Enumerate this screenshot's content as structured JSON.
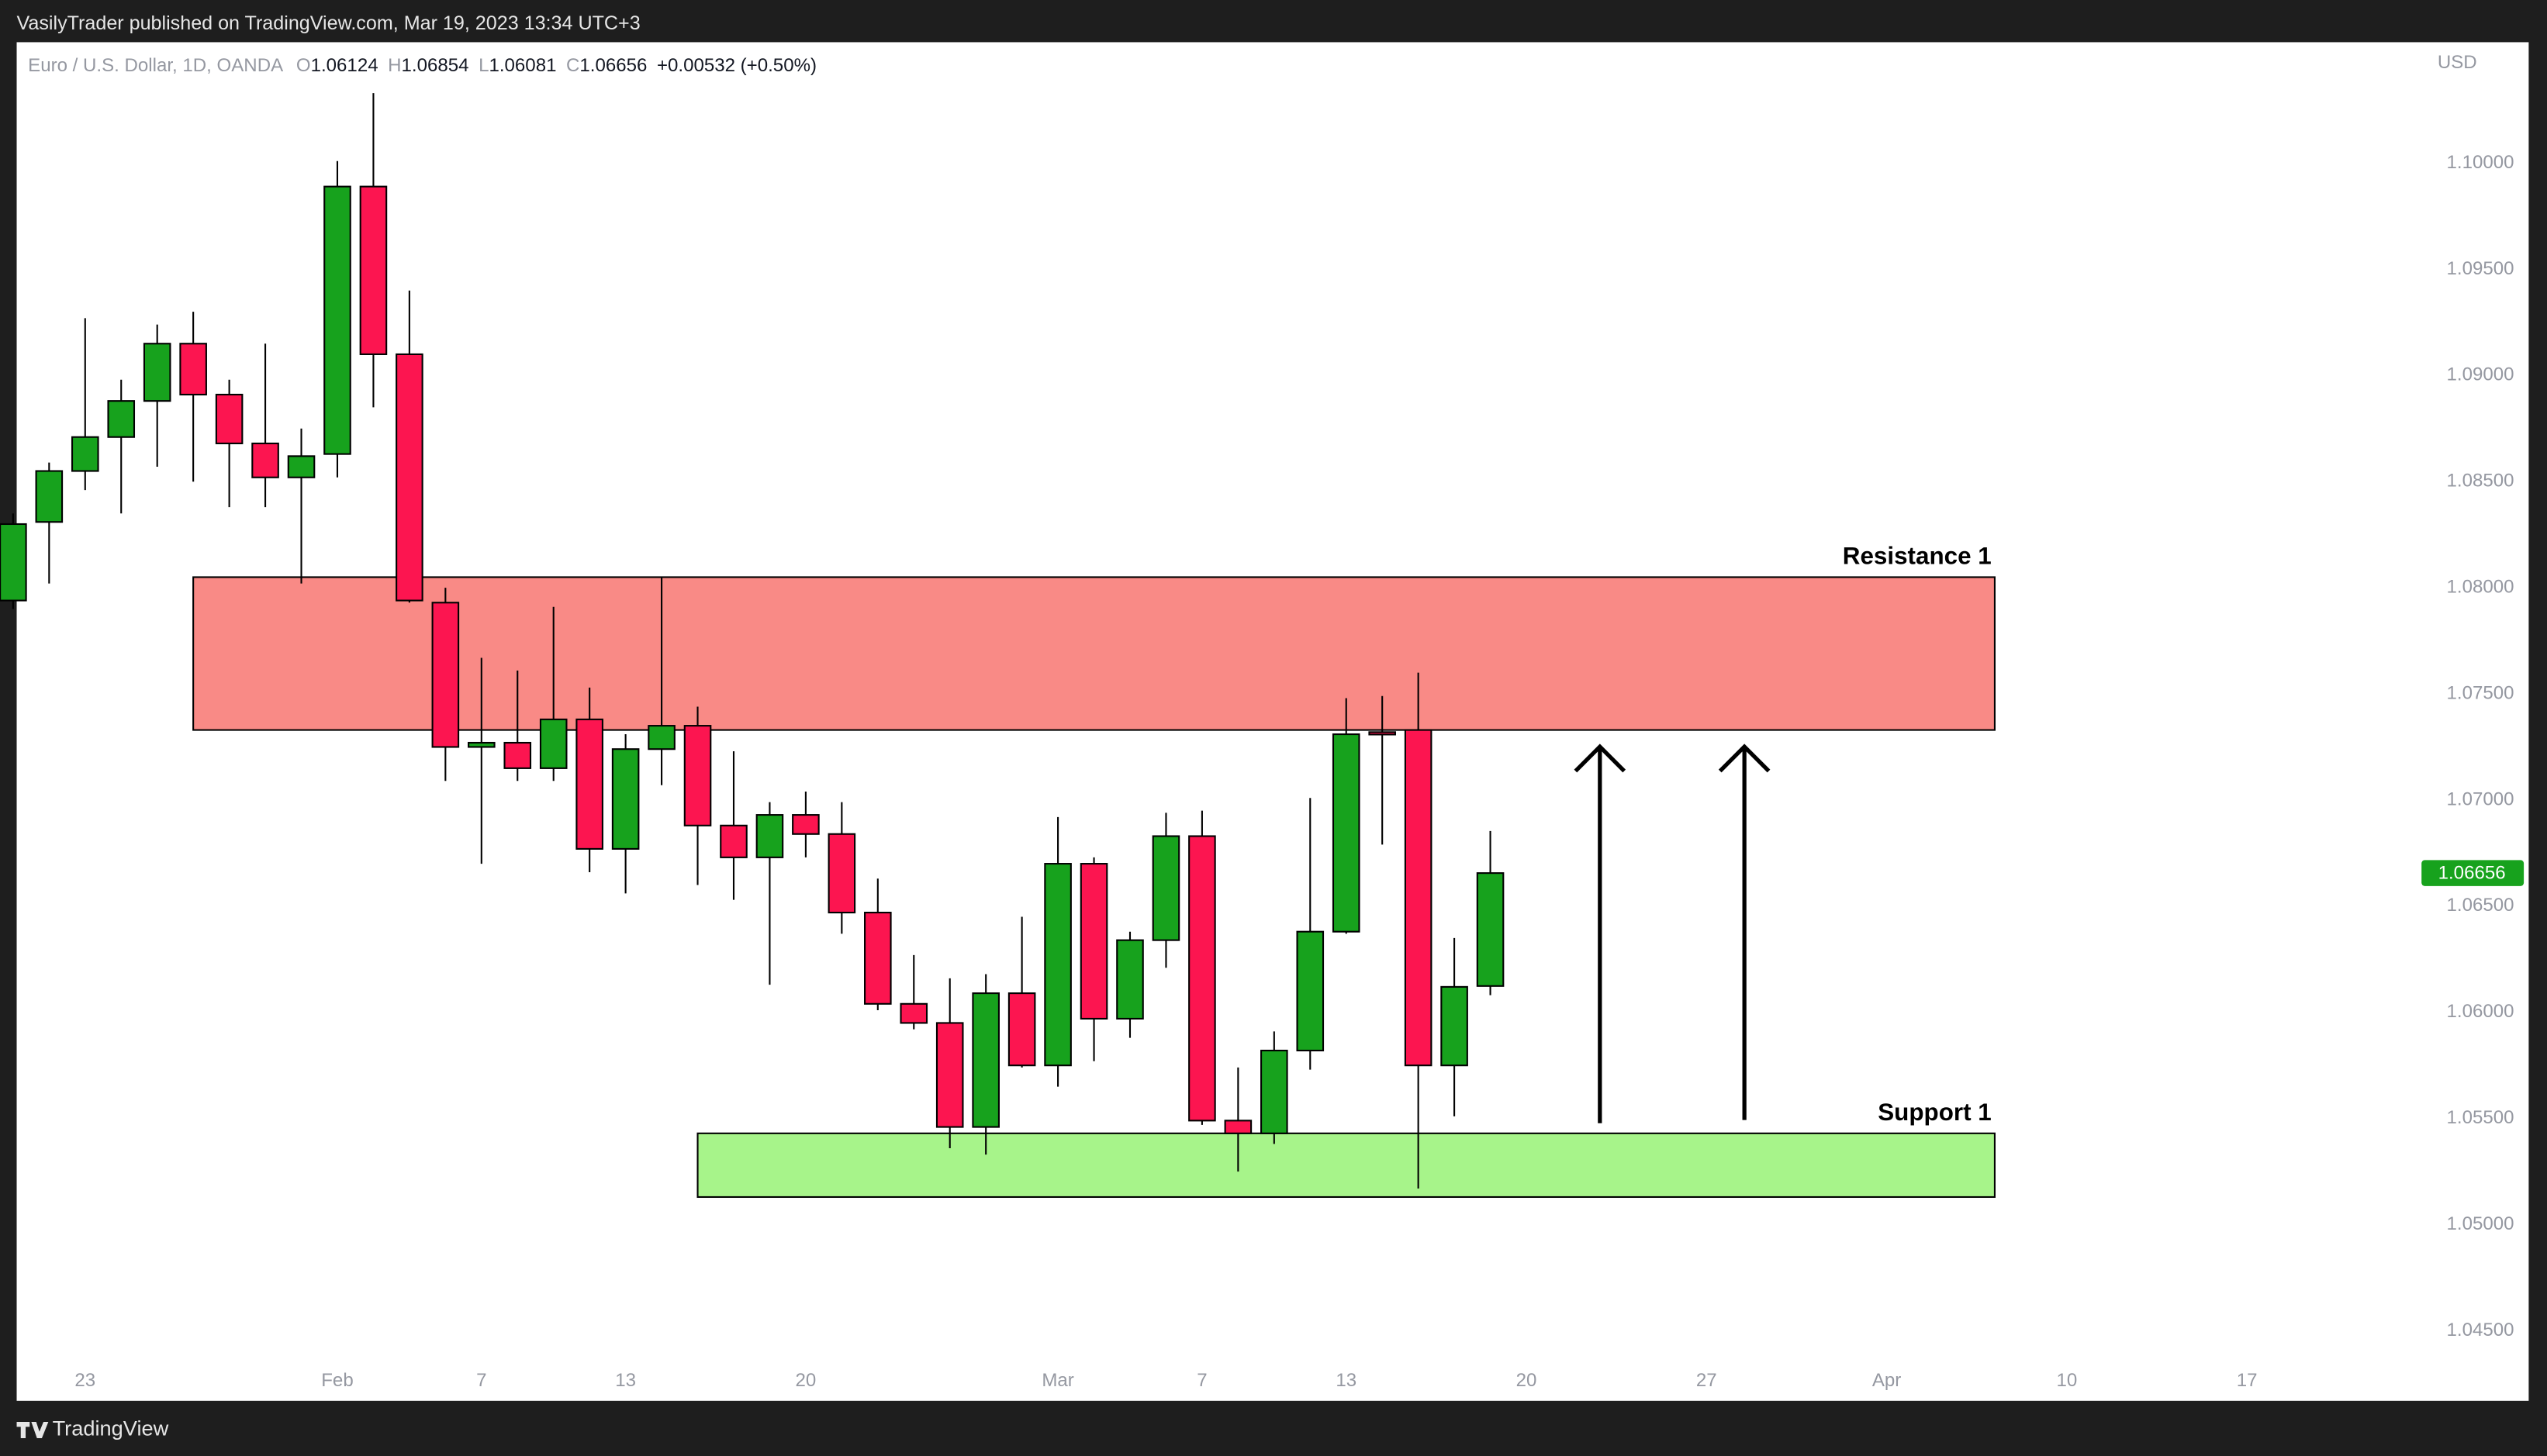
{
  "header": {
    "publisher": "VasilyTrader published on TradingView.com, Mar 19, 2023 13:34 UTC+3",
    "brand": "TradingView"
  },
  "chart_data": {
    "type": "candlestick",
    "title": "Euro / U.S. Dollar, 1D, OANDA",
    "ohlc_labels": [
      "O",
      "H",
      "L",
      "C"
    ],
    "change": "+0.00532 (+0.50%)",
    "currency": "USD",
    "up_color": "#17a21d",
    "down_color": "#fc1550",
    "x": [
      0,
      1,
      2,
      3,
      4,
      5,
      6,
      7,
      8,
      9,
      10,
      11,
      12,
      13,
      14,
      15,
      16,
      17,
      18,
      19,
      20,
      21,
      22,
      23,
      24,
      25,
      26,
      27,
      28,
      29,
      30,
      31,
      32,
      33,
      34,
      35,
      36,
      37,
      38,
      39,
      40,
      41
    ],
    "open": [
      1.0794,
      1.0831,
      1.0855,
      1.0871,
      1.0888,
      1.0915,
      1.0891,
      1.0868,
      1.0852,
      1.0863,
      1.0989,
      1.091,
      1.0793,
      1.0725,
      1.0727,
      1.0715,
      1.0738,
      1.0677,
      1.0724,
      1.0735,
      1.0688,
      1.0673,
      1.0693,
      1.0684,
      1.0647,
      1.0604,
      1.0595,
      1.0546,
      1.0609,
      1.0575,
      1.067,
      1.0597,
      1.0634,
      1.0683,
      1.0549,
      1.0543,
      1.0582,
      1.0638,
      1.0732,
      1.0733,
      1.0575,
      1.06124
    ],
    "high": [
      1.0835,
      1.0859,
      1.0927,
      1.0898,
      1.0924,
      1.093,
      1.0898,
      1.0915,
      1.0875,
      1.1001,
      1.1033,
      1.094,
      1.08,
      1.0767,
      1.0761,
      1.0791,
      1.0753,
      1.0731,
      1.0805,
      1.0744,
      1.0723,
      1.0699,
      1.0704,
      1.0699,
      1.0663,
      1.0627,
      1.0616,
      1.0618,
      1.0645,
      1.0692,
      1.0673,
      1.0638,
      1.0694,
      1.0695,
      1.0574,
      1.0591,
      1.0701,
      1.0748,
      1.0749,
      1.076,
      1.0635,
      1.06854
    ],
    "low": [
      1.079,
      1.0802,
      1.0846,
      1.0835,
      1.0857,
      1.085,
      1.0838,
      1.0838,
      1.0802,
      1.0852,
      1.0885,
      1.0793,
      1.0709,
      1.067,
      1.0709,
      1.0709,
      1.0666,
      1.0656,
      1.0707,
      1.066,
      1.0653,
      1.0613,
      1.0673,
      1.0637,
      1.0601,
      1.0592,
      1.0536,
      1.0533,
      1.0574,
      1.0565,
      1.0577,
      1.0588,
      1.0621,
      1.0547,
      1.0525,
      1.0538,
      1.0573,
      1.0637,
      1.0679,
      1.0517,
      1.0551,
      1.06081
    ],
    "close": [
      1.083,
      1.0855,
      1.0871,
      1.0888,
      1.0915,
      1.0891,
      1.0868,
      1.0852,
      1.0862,
      1.0989,
      1.091,
      1.0794,
      1.0725,
      1.0727,
      1.0715,
      1.0738,
      1.0677,
      1.0724,
      1.0735,
      1.0688,
      1.0673,
      1.0693,
      1.0684,
      1.0647,
      1.0604,
      1.0595,
      1.0546,
      1.0609,
      1.0575,
      1.067,
      1.0597,
      1.0634,
      1.0683,
      1.0549,
      1.0543,
      1.0582,
      1.0638,
      1.0731,
      1.0731,
      1.0575,
      1.0612,
      1.06656
    ],
    "xlim": [
      0.1,
      66.8
    ],
    "xticks": [
      {
        "value": 2,
        "label": "23"
      },
      {
        "value": 9,
        "label": "Feb"
      },
      {
        "value": 13,
        "label": "7"
      },
      {
        "value": 17,
        "label": "13"
      },
      {
        "value": 22,
        "label": "20"
      },
      {
        "value": 29,
        "label": "Mar"
      },
      {
        "value": 33,
        "label": "7"
      },
      {
        "value": 37,
        "label": "13"
      },
      {
        "value": 42,
        "label": "20"
      },
      {
        "value": 47,
        "label": "27"
      },
      {
        "value": 52,
        "label": "Apr"
      },
      {
        "value": 57,
        "label": "10"
      },
      {
        "value": 62,
        "label": "17"
      }
    ],
    "ylim": [
      1.0417,
      1.1057
    ],
    "yticks": [
      {
        "value": 1.045,
        "label": "1.04500"
      },
      {
        "value": 1.05,
        "label": "1.05000"
      },
      {
        "value": 1.055,
        "label": "1.05500"
      },
      {
        "value": 1.06,
        "label": "1.06000"
      },
      {
        "value": 1.065,
        "label": "1.06500"
      },
      {
        "value": 1.07,
        "label": "1.07000"
      },
      {
        "value": 1.075,
        "label": "1.07500"
      },
      {
        "value": 1.08,
        "label": "1.08000"
      },
      {
        "value": 1.085,
        "label": "1.08500"
      },
      {
        "value": 1.09,
        "label": "1.09000"
      },
      {
        "value": 1.095,
        "label": "1.09500"
      },
      {
        "value": 1.1,
        "label": "1.10000"
      }
    ],
    "zones": [
      {
        "name": "Resistance 1",
        "low": 1.0733,
        "high": 1.0805,
        "start": 5,
        "end": 55,
        "color": "#f98a86"
      },
      {
        "name": "Support 1",
        "low": 1.0513,
        "high": 1.0543,
        "start": 19,
        "end": 55,
        "color": "#a7f48a"
      }
    ]
  }
}
